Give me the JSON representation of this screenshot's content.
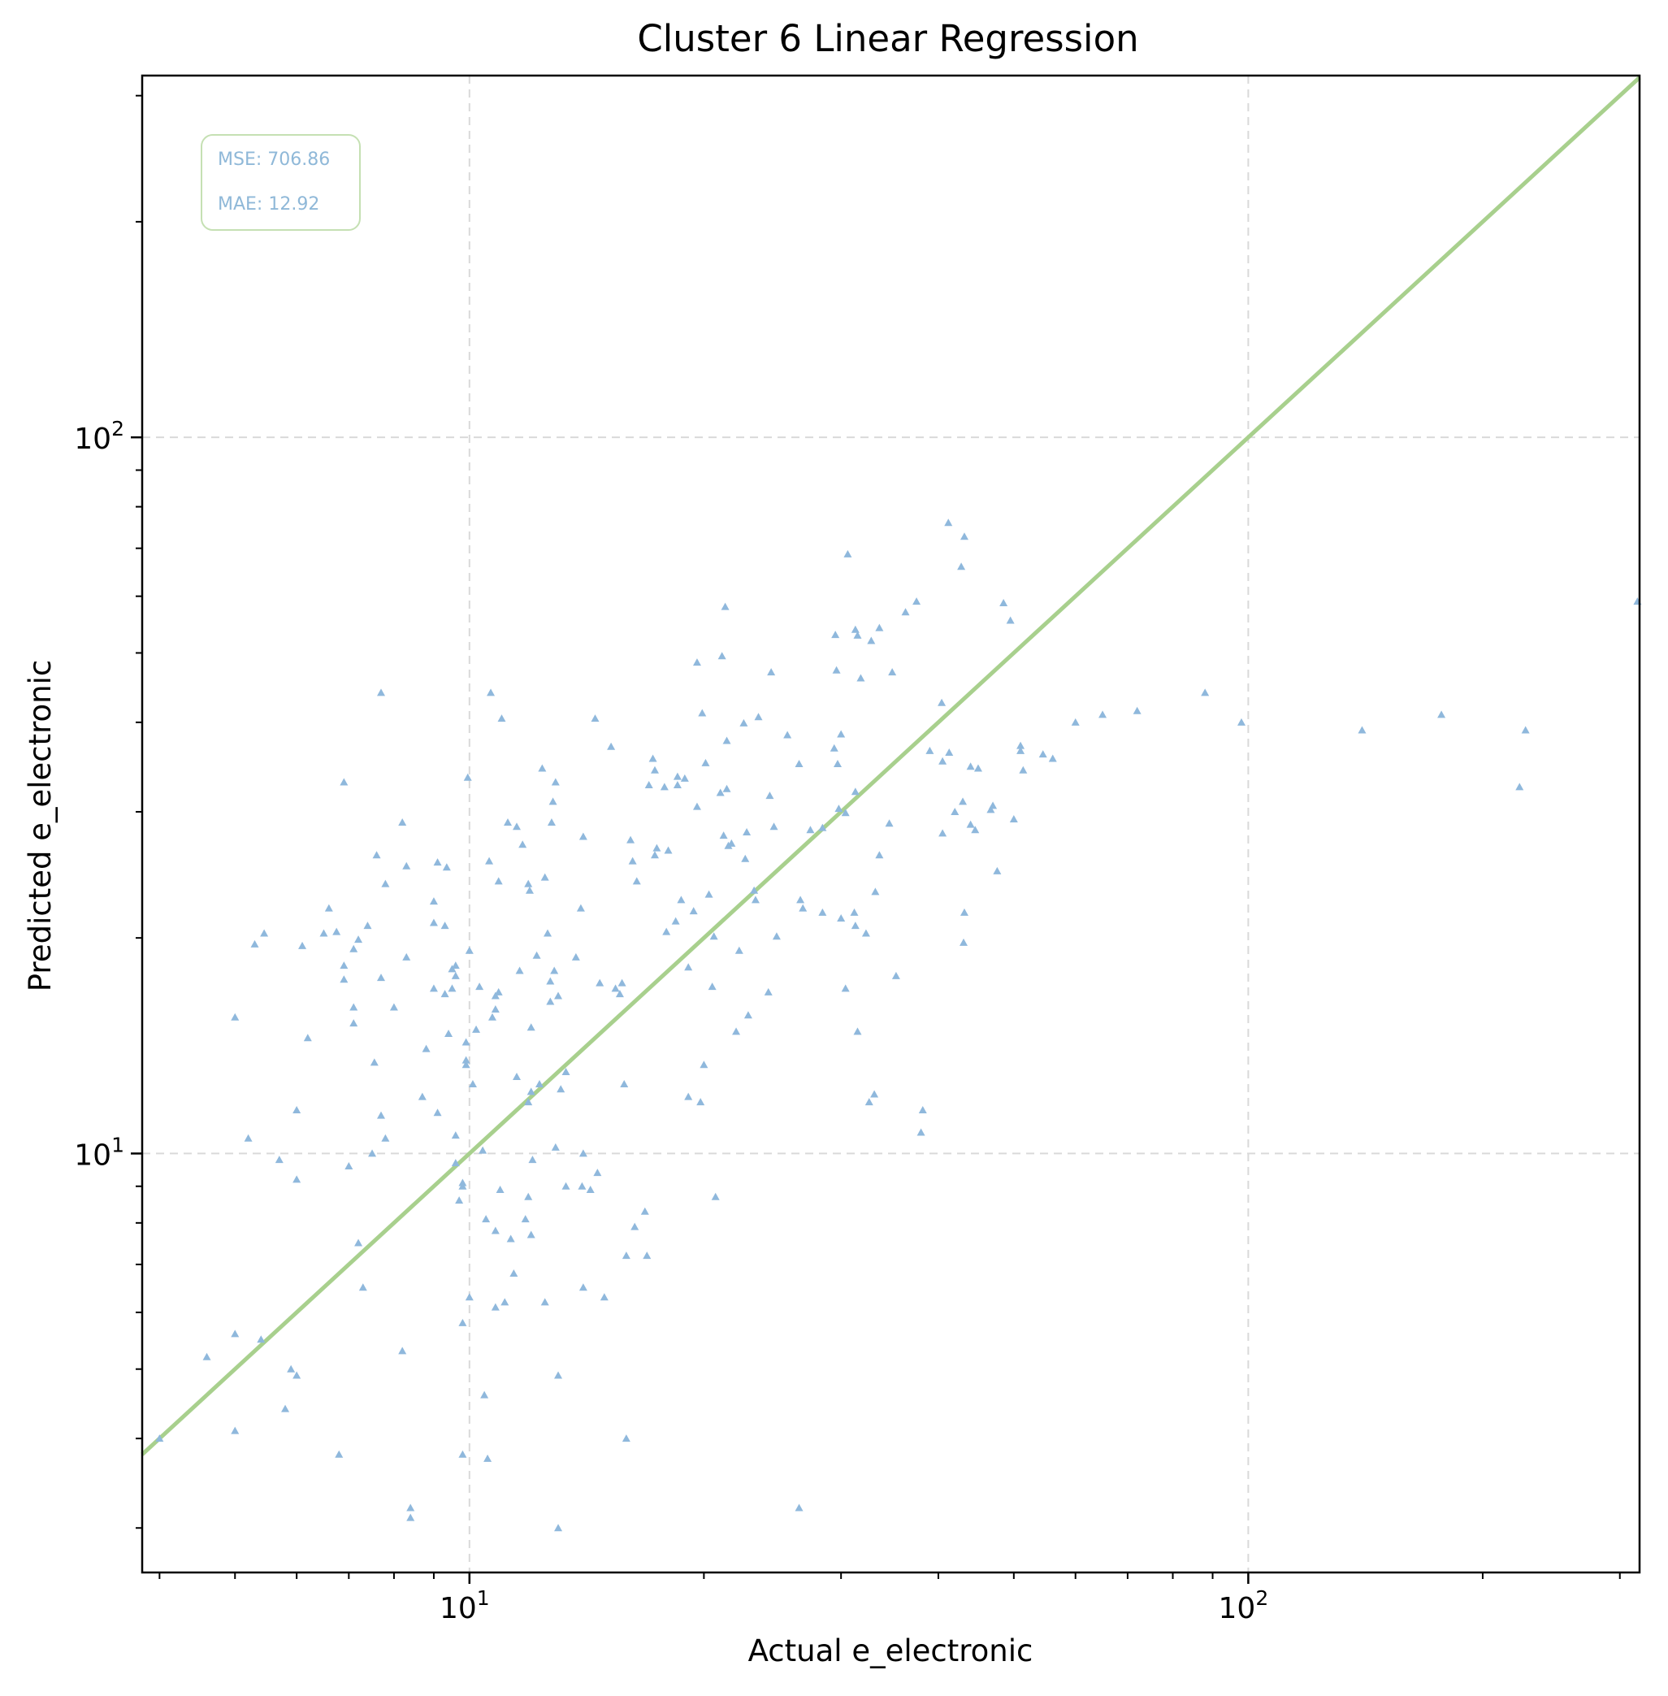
{
  "chart_data": {
    "type": "scatter",
    "title": "Cluster 6 Linear Regression",
    "xlabel": "Actual e_electronic",
    "ylabel": "Predicted e_electronic",
    "xscale": "log",
    "yscale": "log",
    "xlim": [
      3.8,
      318
    ],
    "ylim": [
      2.6,
      320
    ],
    "x_ticks": [
      {
        "value": 10,
        "base": "10",
        "exp": "1"
      },
      {
        "value": 100,
        "base": "10",
        "exp": "2"
      }
    ],
    "y_ticks": [
      {
        "value": 10,
        "base": "10",
        "exp": "1"
      },
      {
        "value": 100,
        "base": "10",
        "exp": "2"
      }
    ],
    "grid": true,
    "reference_line": {
      "kind": "y=x",
      "color": "#a8d08d"
    },
    "point_color": "#8fb8dc",
    "marker": "triangle-up",
    "stats": {
      "mse": "MSE: 706.86",
      "mae": "MAE: 12.92",
      "placement": "top-left"
    },
    "points": [
      [
        4.0,
        4.0
      ],
      [
        4.6,
        5.2
      ],
      [
        5.0,
        15.5
      ],
      [
        5.2,
        10.5
      ],
      [
        5.3,
        19.6
      ],
      [
        5.45,
        20.3
      ],
      [
        5.7,
        9.8
      ],
      [
        5.4,
        5.5
      ],
      [
        5.0,
        5.6
      ],
      [
        5.0,
        4.1
      ],
      [
        5.8,
        4.4
      ],
      [
        5.9,
        5.0
      ],
      [
        6.0,
        4.9
      ],
      [
        6.0,
        11.5
      ],
      [
        6.0,
        9.2
      ],
      [
        6.2,
        14.5
      ],
      [
        6.1,
        19.5
      ],
      [
        6.5,
        20.3
      ],
      [
        6.6,
        22.0
      ],
      [
        6.75,
        20.4
      ],
      [
        6.9,
        33.0
      ],
      [
        6.9,
        17.5
      ],
      [
        6.9,
        18.3
      ],
      [
        7.0,
        9.6
      ],
      [
        7.1,
        19.3
      ],
      [
        7.2,
        19.9
      ],
      [
        7.1,
        16.0
      ],
      [
        7.1,
        15.2
      ],
      [
        7.2,
        7.5
      ],
      [
        7.3,
        6.5
      ],
      [
        7.4,
        20.8
      ],
      [
        7.5,
        10.0
      ],
      [
        6.8,
        3.8
      ],
      [
        7.55,
        13.4
      ],
      [
        7.7,
        11.3
      ],
      [
        7.8,
        10.5
      ],
      [
        7.6,
        26.1
      ],
      [
        7.7,
        17.6
      ],
      [
        7.7,
        44.0
      ],
      [
        7.8,
        23.8
      ],
      [
        8.0,
        16.0
      ],
      [
        8.2,
        5.3
      ],
      [
        8.3,
        25.2
      ],
      [
        8.2,
        29.0
      ],
      [
        8.3,
        18.8
      ],
      [
        8.4,
        3.2
      ],
      [
        8.4,
        3.1
      ],
      [
        8.7,
        12.0
      ],
      [
        8.8,
        14.0
      ],
      [
        9.0,
        17.0
      ],
      [
        9.0,
        22.5
      ],
      [
        9.0,
        21.0
      ],
      [
        9.1,
        11.4
      ],
      [
        9.1,
        25.5
      ],
      [
        9.3,
        16.7
      ],
      [
        9.3,
        20.8
      ],
      [
        9.35,
        25.1
      ],
      [
        9.4,
        14.7
      ],
      [
        9.5,
        17.0
      ],
      [
        9.5,
        18.1
      ],
      [
        9.6,
        10.6
      ],
      [
        9.6,
        17.7
      ],
      [
        9.6,
        18.3
      ],
      [
        9.6,
        9.7
      ],
      [
        9.7,
        8.6
      ],
      [
        9.8,
        5.8
      ],
      [
        9.8,
        9.0
      ],
      [
        9.8,
        9.1
      ],
      [
        9.8,
        3.8
      ],
      [
        10.0,
        6.3
      ],
      [
        9.9,
        13.3
      ],
      [
        9.9,
        13.5
      ],
      [
        9.9,
        14.3
      ],
      [
        9.95,
        33.5
      ],
      [
        10.0,
        19.2
      ],
      [
        10.1,
        12.5
      ],
      [
        10.2,
        14.9
      ],
      [
        10.3,
        17.1
      ],
      [
        10.4,
        10.1
      ],
      [
        10.45,
        4.6
      ],
      [
        10.5,
        8.1
      ],
      [
        10.55,
        3.75
      ],
      [
        10.6,
        25.6
      ],
      [
        10.65,
        44.0
      ],
      [
        10.7,
        15.5
      ],
      [
        10.8,
        16.6
      ],
      [
        10.8,
        15.9
      ],
      [
        10.8,
        7.8
      ],
      [
        10.8,
        6.1
      ],
      [
        10.9,
        24.0
      ],
      [
        10.95,
        8.9
      ],
      [
        10.9,
        16.8
      ],
      [
        11.0,
        40.5
      ],
      [
        11.1,
        6.2
      ],
      [
        11.2,
        29.0
      ],
      [
        11.3,
        7.6
      ],
      [
        11.4,
        6.8
      ],
      [
        11.5,
        28.6
      ],
      [
        11.5,
        12.8
      ],
      [
        11.6,
        18.0
      ],
      [
        11.7,
        27.0
      ],
      [
        11.8,
        8.1
      ],
      [
        11.9,
        11.8
      ],
      [
        11.9,
        8.7
      ],
      [
        11.9,
        23.8
      ],
      [
        11.95,
        23.3
      ],
      [
        12.0,
        7.7
      ],
      [
        12.0,
        12.2
      ],
      [
        12.05,
        9.8
      ],
      [
        12.0,
        15.0
      ],
      [
        12.2,
        18.9
      ],
      [
        12.3,
        12.5
      ],
      [
        12.4,
        34.5
      ],
      [
        12.5,
        24.3
      ],
      [
        12.5,
        6.2
      ],
      [
        12.6,
        20.3
      ],
      [
        12.7,
        17.4
      ],
      [
        12.7,
        16.3
      ],
      [
        12.8,
        31.0
      ],
      [
        12.75,
        29.0
      ],
      [
        12.85,
        18.0
      ],
      [
        12.9,
        33.0
      ],
      [
        12.9,
        10.2
      ],
      [
        13.0,
        16.6
      ],
      [
        13.0,
        4.9
      ],
      [
        13.0,
        3.0
      ],
      [
        13.1,
        12.3
      ],
      [
        13.3,
        9.0
      ],
      [
        13.3,
        13.0
      ],
      [
        13.7,
        18.8
      ],
      [
        13.9,
        22.0
      ],
      [
        14.0,
        27.7
      ],
      [
        13.95,
        9.0
      ],
      [
        14.0,
        10.0
      ],
      [
        14.0,
        6.5
      ],
      [
        14.3,
        8.9
      ],
      [
        14.5,
        40.5
      ],
      [
        14.6,
        9.4
      ],
      [
        14.7,
        17.3
      ],
      [
        14.9,
        6.3
      ],
      [
        15.2,
        37.0
      ],
      [
        15.4,
        17.0
      ],
      [
        15.6,
        16.7
      ],
      [
        15.7,
        17.3
      ],
      [
        15.9,
        7.2
      ],
      [
        15.9,
        4.0
      ],
      [
        15.8,
        12.5
      ],
      [
        16.1,
        27.4
      ],
      [
        16.3,
        7.9
      ],
      [
        16.2,
        25.6
      ],
      [
        16.4,
        24.0
      ],
      [
        16.8,
        8.3
      ],
      [
        16.9,
        7.2
      ],
      [
        17.0,
        32.7
      ],
      [
        17.2,
        35.6
      ],
      [
        17.3,
        34.3
      ],
      [
        17.4,
        26.7
      ],
      [
        17.3,
        26.1
      ],
      [
        17.8,
        32.5
      ],
      [
        17.9,
        20.4
      ],
      [
        18.0,
        26.5
      ],
      [
        18.4,
        21.1
      ],
      [
        18.5,
        33.6
      ],
      [
        18.5,
        32.7
      ],
      [
        18.7,
        22.6
      ],
      [
        18.9,
        33.4
      ],
      [
        19.1,
        18.2
      ],
      [
        19.1,
        12.0
      ],
      [
        19.4,
        21.8
      ],
      [
        19.6,
        48.5
      ],
      [
        19.6,
        30.5
      ],
      [
        19.8,
        11.8
      ],
      [
        19.9,
        41.2
      ],
      [
        20.0,
        13.3
      ],
      [
        20.1,
        35.1
      ],
      [
        20.3,
        23.0
      ],
      [
        20.5,
        17.1
      ],
      [
        20.7,
        8.7
      ],
      [
        20.6,
        20.1
      ],
      [
        21.0,
        31.9
      ],
      [
        21.1,
        49.5
      ],
      [
        21.2,
        27.8
      ],
      [
        21.4,
        37.7
      ],
      [
        21.5,
        26.9
      ],
      [
        21.3,
        58.0
      ],
      [
        21.4,
        32.3
      ],
      [
        21.7,
        27.1
      ],
      [
        22.0,
        14.8
      ],
      [
        22.2,
        19.2
      ],
      [
        22.5,
        39.9
      ],
      [
        22.6,
        25.8
      ],
      [
        22.7,
        28.1
      ],
      [
        22.8,
        15.6
      ],
      [
        23.3,
        22.6
      ],
      [
        23.5,
        40.7
      ],
      [
        23.2,
        23.3
      ],
      [
        24.3,
        31.6
      ],
      [
        24.2,
        16.8
      ],
      [
        24.6,
        28.6
      ],
      [
        24.4,
        47.0
      ],
      [
        24.8,
        20.1
      ],
      [
        25.6,
        38.4
      ],
      [
        26.5,
        3.2
      ],
      [
        26.6,
        22.6
      ],
      [
        26.8,
        22.0
      ],
      [
        26.5,
        35.0
      ],
      [
        27.4,
        28.3
      ],
      [
        28.4,
        21.7
      ],
      [
        28.4,
        28.5
      ],
      [
        29.5,
        53.0
      ],
      [
        29.6,
        47.3
      ],
      [
        29.7,
        35.0
      ],
      [
        29.8,
        30.3
      ],
      [
        29.4,
        36.8
      ],
      [
        30.0,
        21.3
      ],
      [
        30.0,
        38.5
      ],
      [
        30.4,
        17.0
      ],
      [
        30.6,
        68.7
      ],
      [
        30.4,
        29.9
      ],
      [
        31.2,
        21.7
      ],
      [
        31.3,
        20.8
      ],
      [
        31.3,
        53.9
      ],
      [
        31.5,
        14.8
      ],
      [
        31.5,
        52.9
      ],
      [
        31.8,
        46.1
      ],
      [
        31.3,
        32.0
      ],
      [
        32.3,
        20.3
      ],
      [
        32.6,
        11.8
      ],
      [
        32.8,
        52.0
      ],
      [
        33.2,
        23.2
      ],
      [
        33.1,
        12.1
      ],
      [
        33.6,
        26.1
      ],
      [
        33.6,
        54.2
      ],
      [
        34.6,
        28.9
      ],
      [
        34.9,
        47.0
      ],
      [
        35.3,
        17.7
      ],
      [
        36.3,
        57.0
      ],
      [
        37.5,
        59.0
      ],
      [
        38.2,
        11.5
      ],
      [
        38.0,
        10.7
      ],
      [
        39.0,
        36.5
      ],
      [
        40.5,
        35.3
      ],
      [
        40.4,
        42.6
      ],
      [
        40.5,
        28.0
      ],
      [
        41.2,
        76.0
      ],
      [
        41.3,
        36.3
      ],
      [
        42.0,
        30.0
      ],
      [
        42.8,
        66.0
      ],
      [
        43.0,
        31.0
      ],
      [
        43.2,
        21.7
      ],
      [
        43.1,
        19.7
      ],
      [
        43.2,
        72.7
      ],
      [
        44.0,
        28.8
      ],
      [
        44.0,
        34.7
      ],
      [
        44.6,
        28.3
      ],
      [
        45.0,
        34.5
      ],
      [
        46.7,
        30.2
      ],
      [
        47.0,
        30.6
      ],
      [
        47.6,
        24.8
      ],
      [
        48.5,
        58.7
      ],
      [
        49.5,
        55.5
      ],
      [
        50.0,
        29.3
      ],
      [
        51.0,
        36.5
      ],
      [
        51.0,
        37.1
      ],
      [
        51.4,
        34.3
      ],
      [
        54.5,
        36.1
      ],
      [
        56.1,
        35.6
      ],
      [
        60.0,
        40.0
      ],
      [
        65.0,
        41.0
      ],
      [
        72.0,
        41.5
      ],
      [
        88.0,
        44.0
      ],
      [
        98.0,
        40.0
      ],
      [
        140.0,
        39.0
      ],
      [
        177.0,
        41.0
      ],
      [
        223.0,
        32.5
      ],
      [
        227.0,
        39.0
      ],
      [
        316.0,
        59.0
      ]
    ]
  }
}
